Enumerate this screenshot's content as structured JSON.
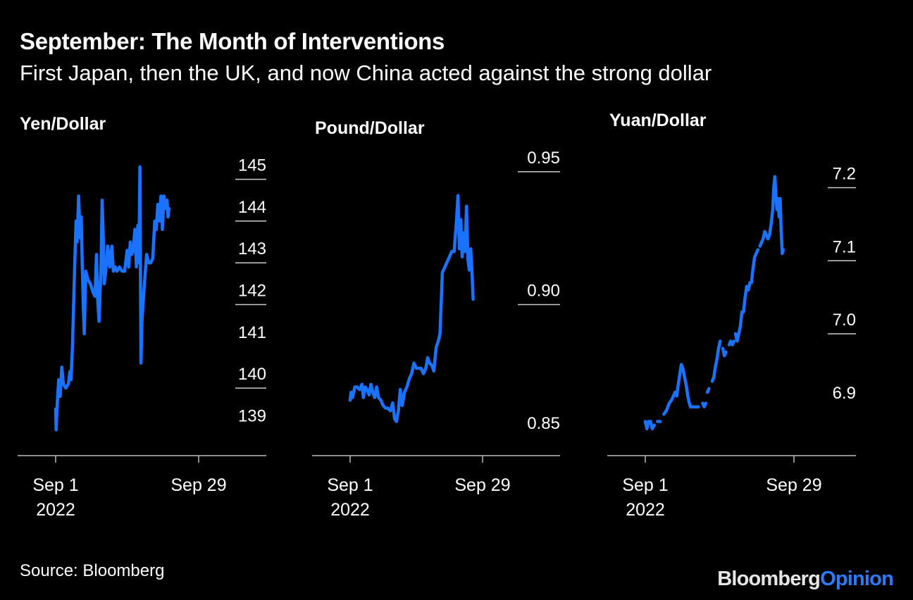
{
  "header": {
    "title": "September: The Month of Interventions",
    "subtitle": "First Japan, then the UK, and now China acted against the strong dollar"
  },
  "footer": {
    "source": "Source: Bloomberg",
    "brand_part1": "Bloomberg",
    "brand_part2": "Opinion"
  },
  "colors": {
    "line": "#1a73ff",
    "background": "#000000",
    "text": "#ffffff",
    "brand_accent": "#2c7bff"
  },
  "chart_data": [
    {
      "type": "line",
      "title": "Yen/Dollar",
      "x_tick_labels": [
        "Sep 1\n2022",
        "Sep 29"
      ],
      "y_ticks": [
        139,
        140,
        141,
        142,
        143,
        144,
        145
      ],
      "ylim": [
        138.5,
        145.5
      ],
      "xlim": [
        1,
        29
      ],
      "gridlines": "short tick lines at 140, 142, 143, 144, 145",
      "series": [
        {
          "points": [
            [
              1,
              139.5
            ],
            [
              1.1,
              139
            ],
            [
              1.3,
              139.6
            ],
            [
              1.6,
              140.2
            ],
            [
              1.9,
              139.8
            ],
            [
              2.2,
              140.5
            ],
            [
              2.5,
              140.1
            ],
            [
              3,
              140.0
            ],
            [
              3.5,
              140.1
            ],
            [
              3.8,
              140.4
            ],
            [
              4,
              140.2
            ],
            [
              4.3,
              141.0
            ],
            [
              4.7,
              142.8
            ],
            [
              5,
              144.0
            ],
            [
              5.2,
              143.5
            ],
            [
              5.5,
              144.6
            ],
            [
              5.8,
              143.6
            ],
            [
              6,
              144.1
            ],
            [
              6.2,
              143.0
            ],
            [
              6.4,
              142.0
            ],
            [
              6.6,
              141.3
            ],
            [
              6.9,
              142.8
            ],
            [
              7.3,
              142.6
            ],
            [
              7.8,
              142.5
            ],
            [
              8.3,
              142.3
            ],
            [
              8.7,
              142.2
            ],
            [
              9,
              143.2
            ],
            [
              9.2,
              142.2
            ],
            [
              9.5,
              141.6
            ],
            [
              9.9,
              143.0
            ],
            [
              10.1,
              144.5
            ],
            [
              10.3,
              143.7
            ],
            [
              10.5,
              142.5
            ],
            [
              10.8,
              142.8
            ],
            [
              11.2,
              143.4
            ],
            [
              11.6,
              142.9
            ],
            [
              12,
              143.4
            ],
            [
              12.3,
              142.8
            ],
            [
              12.7,
              142.9
            ],
            [
              13,
              142.8
            ],
            [
              13.5,
              142.9
            ],
            [
              14,
              142.8
            ],
            [
              14.5,
              142.8
            ],
            [
              15,
              143.3
            ],
            [
              15.3,
              142.9
            ],
            [
              15.6,
              143.5
            ],
            [
              15.9,
              143.2
            ],
            [
              16.2,
              143.3
            ],
            [
              16.5,
              143.8
            ],
            [
              16.8,
              142.9
            ],
            [
              17.1,
              143.9
            ],
            [
              17.3,
              143.0
            ],
            [
              17.5,
              145.3
            ],
            [
              17.7,
              140.6
            ],
            [
              17.9,
              141.6
            ],
            [
              18.2,
              142.2
            ],
            [
              18.5,
              142.7
            ],
            [
              18.8,
              143.2
            ],
            [
              19.2,
              143.0
            ],
            [
              19.6,
              143.0
            ],
            [
              20,
              143.1
            ],
            [
              20.4,
              144.0
            ],
            [
              20.7,
              143.8
            ],
            [
              21,
              144.4
            ],
            [
              21.3,
              144.0
            ],
            [
              21.6,
              144.6
            ],
            [
              21.9,
              143.8
            ],
            [
              22.2,
              144.6
            ],
            [
              22.5,
              144.3
            ],
            [
              22.8,
              144.5
            ],
            [
              23,
              144.1
            ],
            [
              23.2,
              144.3
            ]
          ]
        }
      ]
    },
    {
      "type": "line",
      "title": "Pound/Dollar",
      "x_tick_labels": [
        "Sep 1\n2022",
        "Sep 29"
      ],
      "y_ticks": [
        0.85,
        0.9,
        0.95
      ],
      "ylim": [
        0.845,
        0.955
      ],
      "xlim": [
        1,
        29
      ],
      "gridlines": "short tick lines at 0.90 and 0.95",
      "series": [
        {
          "points": [
            [
              1,
              0.864
            ],
            [
              1.2,
              0.867
            ],
            [
              1.5,
              0.865
            ],
            [
              2,
              0.869
            ],
            [
              2.5,
              0.869
            ],
            [
              3,
              0.868
            ],
            [
              3.5,
              0.87
            ],
            [
              3.8,
              0.865
            ],
            [
              4.2,
              0.869
            ],
            [
              4.6,
              0.868
            ],
            [
              5,
              0.866
            ],
            [
              5.4,
              0.87
            ],
            [
              5.8,
              0.867
            ],
            [
              6.2,
              0.865
            ],
            [
              6.6,
              0.869
            ],
            [
              7,
              0.865
            ],
            [
              7.5,
              0.864
            ],
            [
              8,
              0.862
            ],
            [
              8.5,
              0.861
            ],
            [
              9,
              0.861
            ],
            [
              9.5,
              0.86
            ],
            [
              10,
              0.863
            ],
            [
              10.4,
              0.857
            ],
            [
              10.8,
              0.856
            ],
            [
              11.2,
              0.86
            ],
            [
              11.6,
              0.868
            ],
            [
              12,
              0.862
            ],
            [
              12.5,
              0.867
            ],
            [
              13,
              0.869
            ],
            [
              13.5,
              0.872
            ],
            [
              14,
              0.874
            ],
            [
              14.5,
              0.878
            ],
            [
              15,
              0.876
            ],
            [
              15.5,
              0.876
            ],
            [
              16,
              0.876
            ],
            [
              16.5,
              0.874
            ],
            [
              17,
              0.876
            ],
            [
              17.4,
              0.88
            ],
            [
              17.8,
              0.878
            ],
            [
              18.3,
              0.877
            ],
            [
              18.7,
              0.875
            ],
            [
              19.2,
              0.884
            ],
            [
              19.6,
              0.886
            ],
            [
              20,
              0.889
            ],
            [
              20.5,
              0.912
            ],
            [
              21,
              0.914
            ],
            [
              21.5,
              0.916
            ],
            [
              22,
              0.918
            ],
            [
              22.5,
              0.92
            ],
            [
              23,
              0.92
            ],
            [
              23.5,
              0.932
            ],
            [
              23.8,
              0.941
            ],
            [
              24.1,
              0.921
            ],
            [
              24.4,
              0.932
            ],
            [
              24.7,
              0.918
            ],
            [
              25,
              0.927
            ],
            [
              25.3,
              0.92
            ],
            [
              25.6,
              0.937
            ],
            [
              25.9,
              0.917
            ],
            [
              26.2,
              0.913
            ],
            [
              26.5,
              0.921
            ],
            [
              26.8,
              0.911
            ],
            [
              27,
              0.902
            ]
          ]
        }
      ]
    },
    {
      "type": "line",
      "title": "Yuan/Dollar",
      "x_tick_labels": [
        "Sep 1\n2022",
        "Sep 29"
      ],
      "y_ticks": [
        6.9,
        7.0,
        7.1,
        7.2
      ],
      "ylim": [
        6.84,
        7.24
      ],
      "xlim": [
        1,
        29
      ],
      "gridlines": "short tick lines at 7.0, 7.1 and 7.2",
      "series": [
        {
          "segments": [
            [
              [
                1,
                6.88
              ],
              [
                1.3,
                6.87
              ],
              [
                1.6,
                6.88
              ],
              [
                2,
                6.88
              ],
              [
                2.3,
                6.87
              ],
              [
                2.7,
                6.875
              ]
            ],
            [
              [
                3.3,
                6.88
              ],
              [
                3.6,
                6.88
              ],
              [
                3.8,
                6.88
              ]
            ],
            [
              [
                4.5,
                6.89
              ],
              [
                5,
                6.895
              ],
              [
                5.5,
                6.905
              ],
              [
                6,
                6.91
              ],
              [
                6.3,
                6.915
              ],
              [
                6.6,
                6.92
              ],
              [
                6.9,
                6.915
              ],
              [
                7.2,
                6.93
              ],
              [
                7.5,
                6.945
              ],
              [
                7.8,
                6.958
              ],
              [
                8.1,
                6.952
              ],
              [
                8.4,
                6.94
              ],
              [
                8.7,
                6.93
              ],
              [
                9,
                6.915
              ],
              [
                9.3,
                6.905
              ],
              [
                9.5,
                6.9
              ],
              [
                9.8,
                6.9
              ],
              [
                10.2,
                6.9
              ],
              [
                10.6,
                6.9
              ],
              [
                11,
                6.9
              ]
            ],
            [
              [
                11.8,
                6.905
              ],
              [
                12.1,
                6.9
              ],
              [
                12.4,
                6.905
              ]
            ],
            [
              [
                12.7,
                6.92
              ],
              [
                13,
                6.925
              ]
            ],
            [
              [
                13.6,
                6.935
              ],
              [
                13.9,
                6.94
              ],
              [
                14.2,
                6.955
              ],
              [
                14.5,
                6.965
              ],
              [
                14.8,
                6.98
              ],
              [
                15.1,
                6.99
              ]
            ],
            [
              [
                15.6,
                6.98
              ],
              [
                15.9,
                6.97
              ],
              [
                16.2,
                6.975
              ]
            ],
            [
              [
                16.8,
                6.985
              ],
              [
                17.1,
                6.99
              ],
              [
                17.4,
                6.985
              ],
              [
                17.7,
                6.99
              ]
            ],
            [
              [
                18,
                7.0
              ],
              [
                18.3,
                6.99
              ],
              [
                18.6,
                7.0
              ],
              [
                18.9,
                7.01
              ],
              [
                19.2,
                7.03
              ]
            ],
            [
              [
                19.5,
                7.03
              ],
              [
                19.8,
                7.05
              ],
              [
                20.1,
                7.065
              ],
              [
                20.4,
                7.06
              ],
              [
                20.7,
                7.07
              ]
            ],
            [
              [
                21,
                7.07
              ],
              [
                21.3,
                7.09
              ],
              [
                21.6,
                7.105
              ],
              [
                21.9,
                7.11
              ],
              [
                22.2,
                7.115
              ]
            ],
            [
              [
                22.6,
                7.12
              ],
              [
                22.9,
                7.125
              ],
              [
                23.2,
                7.13
              ],
              [
                23.5,
                7.14
              ],
              [
                23.8,
                7.135
              ],
              [
                24.1,
                7.13
              ],
              [
                24.4,
                7.135
              ],
              [
                24.7,
                7.15
              ],
              [
                25,
                7.17
              ],
              [
                25.2,
                7.2
              ],
              [
                25.4,
                7.215
              ],
              [
                25.6,
                7.19
              ],
              [
                25.8,
                7.17
              ],
              [
                26,
                7.185
              ],
              [
                26.2,
                7.16
              ],
              [
                26.4,
                7.185
              ],
              [
                26.6,
                7.14
              ],
              [
                26.8,
                7.11
              ],
              [
                27,
                7.115
              ]
            ]
          ]
        }
      ]
    }
  ]
}
